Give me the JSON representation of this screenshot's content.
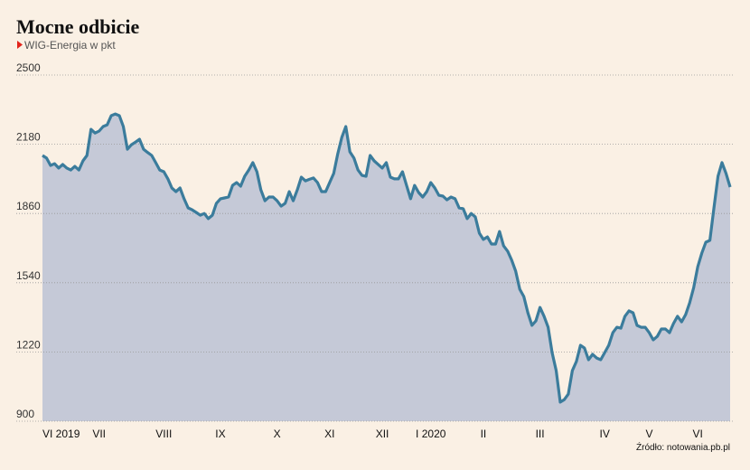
{
  "chart_data": {
    "type": "area",
    "title": "Mocne odbicie",
    "subtitle": "WIG-Energia w pkt",
    "source": "Źródło: notowania.pb.pl",
    "categories": [
      "VI 2019",
      null,
      null,
      null,
      null,
      null,
      null,
      null,
      null,
      null,
      null,
      null,
      null,
      null,
      "VII",
      null,
      null,
      null,
      null,
      null,
      null,
      null,
      null,
      null,
      null,
      null,
      null,
      null,
      null,
      null,
      "VIII",
      null,
      null,
      null,
      null,
      null,
      null,
      null,
      null,
      null,
      null,
      null,
      null,
      null,
      "IX",
      null,
      null,
      null,
      null,
      null,
      null,
      null,
      null,
      null,
      null,
      null,
      null,
      null,
      "X",
      null,
      null,
      null,
      null,
      null,
      null,
      null,
      null,
      null,
      null,
      null,
      null,
      "XI",
      null,
      null,
      null,
      null,
      null,
      null,
      null,
      null,
      null,
      null,
      null,
      null,
      "XII",
      null,
      null,
      null,
      null,
      null,
      null,
      null,
      null,
      null,
      null,
      null,
      "I 2020",
      null,
      null,
      null,
      null,
      null,
      null,
      null,
      null,
      null,
      null,
      null,
      null,
      "II",
      null,
      null,
      null,
      null,
      null,
      null,
      null,
      null,
      null,
      null,
      null,
      null,
      null,
      "III",
      null,
      null,
      null,
      null,
      null,
      null,
      null,
      null,
      null,
      null,
      null,
      null,
      null,
      null,
      null,
      "IV",
      null,
      null,
      null,
      null,
      null,
      null,
      null,
      null,
      null,
      null,
      "V",
      null,
      null,
      null,
      null,
      null,
      null,
      null,
      null,
      null,
      null,
      null,
      "VI",
      null,
      null,
      null,
      null,
      null,
      null,
      null,
      null
    ],
    "values": [
      2128,
      2116,
      2082,
      2090,
      2070,
      2087,
      2070,
      2061,
      2078,
      2061,
      2103,
      2128,
      2249,
      2232,
      2241,
      2262,
      2270,
      2312,
      2320,
      2312,
      2262,
      2157,
      2178,
      2190,
      2203,
      2157,
      2142,
      2128,
      2095,
      2061,
      2053,
      2020,
      1978,
      1961,
      1978,
      1928,
      1886,
      1877,
      1865,
      1852,
      1860,
      1836,
      1852,
      1907,
      1928,
      1932,
      1936,
      1990,
      2003,
      1986,
      2032,
      2061,
      2095,
      2053,
      1969,
      1919,
      1936,
      1936,
      1919,
      1894,
      1907,
      1961,
      1919,
      1969,
      2028,
      2011,
      2018,
      2024,
      2003,
      1961,
      1961,
      2003,
      2045,
      2136,
      2212,
      2262,
      2145,
      2116,
      2061,
      2036,
      2032,
      2128,
      2103,
      2087,
      2070,
      2095,
      2028,
      2020,
      2020,
      2053,
      1990,
      1928,
      1990,
      1957,
      1936,
      1961,
      2003,
      1978,
      1944,
      1940,
      1923,
      1936,
      1928,
      1886,
      1882,
      1836,
      1860,
      1844,
      1769,
      1740,
      1752,
      1719,
      1719,
      1777,
      1711,
      1686,
      1644,
      1593,
      1510,
      1476,
      1401,
      1343,
      1364,
      1426,
      1385,
      1334,
      1217,
      1134,
      988,
      1000,
      1025,
      1134,
      1176,
      1251,
      1238,
      1184,
      1209,
      1192,
      1184,
      1217,
      1251,
      1309,
      1334,
      1330,
      1385,
      1410,
      1401,
      1343,
      1334,
      1334,
      1309,
      1276,
      1292,
      1326,
      1326,
      1309,
      1351,
      1385,
      1359,
      1393,
      1447,
      1518,
      1614,
      1677,
      1727,
      1736,
      1886,
      2032,
      2095,
      2045,
      1982
    ],
    "color": "#3b7c9c",
    "fill_color": "#c5c9d7",
    "ylim": [
      900,
      2500
    ],
    "yticks": [
      900,
      1220,
      1540,
      1860,
      2180,
      2500
    ],
    "grid": true
  }
}
